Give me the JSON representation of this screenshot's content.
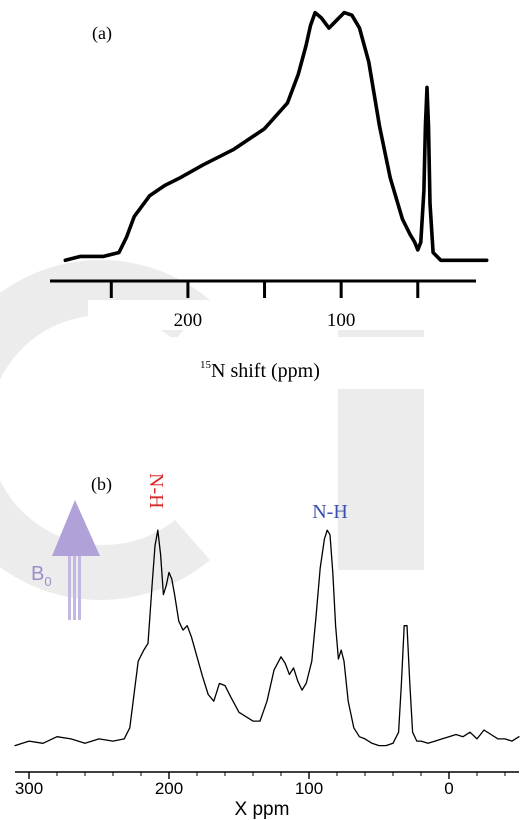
{
  "chart_data": [
    {
      "type": "line",
      "panel_label": "(a)",
      "xlabel_sup": "15",
      "xlabel": "N shift (ppm)",
      "xlim": [
        290,
        12
      ],
      "ylim": [
        0,
        1
      ],
      "xticks": [
        250,
        200,
        150,
        100,
        50
      ],
      "xticklabels": [
        "",
        "200",
        "",
        "100",
        ""
      ],
      "grid": false,
      "series": [
        {
          "x": [
            280,
            270,
            255,
            245,
            240,
            235,
            225,
            215,
            205,
            190,
            170,
            150,
            135,
            128,
            123,
            120,
            117,
            113,
            108,
            103,
            98,
            93,
            88,
            82,
            75,
            68,
            60,
            55,
            52,
            50,
            48,
            46,
            45,
            44,
            43,
            42,
            40,
            35,
            20,
            5
          ],
          "y": [
            0.03,
            0.045,
            0.045,
            0.06,
            0.12,
            0.2,
            0.28,
            0.32,
            0.35,
            0.4,
            0.46,
            0.54,
            0.64,
            0.75,
            0.86,
            0.94,
            0.99,
            0.97,
            0.93,
            0.96,
            0.99,
            0.98,
            0.93,
            0.8,
            0.55,
            0.35,
            0.19,
            0.13,
            0.1,
            0.07,
            0.1,
            0.3,
            0.55,
            0.7,
            0.55,
            0.25,
            0.06,
            0.03,
            0.03,
            0.03
          ]
        }
      ]
    },
    {
      "type": "line",
      "panel_label": "(b)",
      "xlabel": "X ppm",
      "xlim": [
        310,
        -50
      ],
      "ylim": [
        0,
        1
      ],
      "xticks": [
        300,
        200,
        100,
        0
      ],
      "xticklabels": [
        "300",
        "200",
        "100",
        "0"
      ],
      "grid": false,
      "annotations": [
        {
          "text": "N-H",
          "x": 207,
          "y": 1.0,
          "color": "#d62a2a",
          "rotation": 90
        },
        {
          "text": "N-H",
          "x": 85,
          "y": 1.0,
          "color": "#3a4db0",
          "rotation": 0
        }
      ],
      "field_label": {
        "text": "B",
        "sub": "0",
        "color": "#9e8ec8"
      },
      "series": [
        {
          "x": [
            310,
            300,
            290,
            280,
            270,
            260,
            250,
            240,
            232,
            228,
            225,
            222,
            218,
            215,
            212,
            210,
            208,
            206,
            204,
            202,
            200,
            198,
            196,
            193,
            190,
            187,
            184,
            180,
            176,
            172,
            168,
            164,
            160,
            156,
            150,
            145,
            140,
            135,
            130,
            125,
            120,
            117,
            114,
            111,
            108,
            105,
            102,
            98,
            95,
            92,
            89,
            87,
            85,
            83,
            81,
            79,
            77,
            75,
            72,
            68,
            64,
            60,
            55,
            50,
            45,
            40,
            36,
            34,
            32,
            30,
            28,
            26,
            23,
            20,
            15,
            10,
            5,
            0,
            -5,
            -10,
            -15,
            -20,
            -25,
            -30,
            -35,
            -40,
            -45,
            -50
          ],
          "y": [
            0.02,
            0.04,
            0.03,
            0.06,
            0.05,
            0.03,
            0.05,
            0.04,
            0.05,
            0.1,
            0.25,
            0.4,
            0.45,
            0.48,
            0.75,
            0.92,
            0.99,
            0.88,
            0.7,
            0.74,
            0.8,
            0.77,
            0.7,
            0.58,
            0.54,
            0.56,
            0.51,
            0.42,
            0.33,
            0.25,
            0.22,
            0.3,
            0.29,
            0.24,
            0.17,
            0.15,
            0.13,
            0.13,
            0.22,
            0.36,
            0.42,
            0.39,
            0.34,
            0.37,
            0.31,
            0.27,
            0.3,
            0.4,
            0.6,
            0.82,
            0.95,
            0.99,
            0.97,
            0.8,
            0.56,
            0.41,
            0.45,
            0.4,
            0.22,
            0.1,
            0.06,
            0.05,
            0.03,
            0.02,
            0.02,
            0.03,
            0.08,
            0.3,
            0.56,
            0.56,
            0.3,
            0.08,
            0.04,
            0.04,
            0.03,
            0.04,
            0.05,
            0.06,
            0.07,
            0.06,
            0.08,
            0.05,
            0.09,
            0.07,
            0.05,
            0.05,
            0.04,
            0.06
          ]
        }
      ]
    }
  ],
  "colors": {
    "line": "#000000",
    "watermark": "#e8e8e8",
    "arrow": "#b0a2d8",
    "arrow_shaft": "#c4b8e3"
  }
}
